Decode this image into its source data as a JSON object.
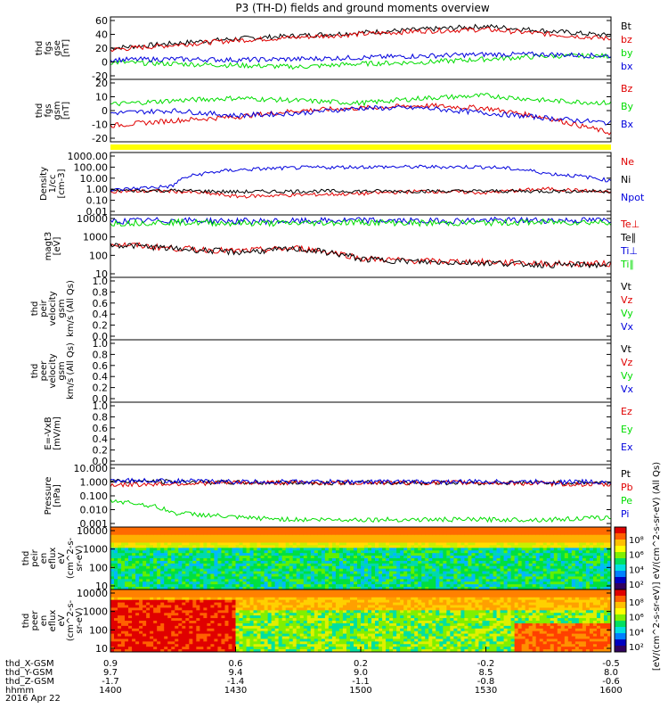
{
  "title": "P3 (TH-D) fields and ground moments overview",
  "date_label": "2016 Apr 22",
  "colors": {
    "black": "#000000",
    "red": "#e00000",
    "green": "#00dd00",
    "blue": "#0000dd",
    "yellow": "#ffff00"
  },
  "panels": [
    {
      "id": "fgs-gse",
      "ylabel": [
        "thd",
        "fgs",
        "gse",
        "[nT]"
      ],
      "ylog": false,
      "ticks": [
        "60",
        "40",
        "20",
        "0",
        "-20"
      ],
      "legend": [
        {
          "text": "Bt",
          "color": "#000000"
        },
        {
          "text": "bz",
          "color": "#e00000"
        },
        {
          "text": "by",
          "color": "#00dd00"
        },
        {
          "text": "bx",
          "color": "#0000dd"
        }
      ]
    },
    {
      "id": "fgs-gsm",
      "ylabel": [
        "thd",
        "fgs",
        "gsm",
        "[nT]"
      ],
      "ylog": false,
      "ticks": [
        "20",
        "10",
        "0",
        "-10",
        "-20"
      ],
      "legend": [
        {
          "text": "Bz",
          "color": "#e00000"
        },
        {
          "text": "By",
          "color": "#00dd00"
        },
        {
          "text": "Bx",
          "color": "#0000dd"
        }
      ]
    },
    {
      "id": "density",
      "ylabel": [
        "Density",
        "1/cc",
        "[cm-3]"
      ],
      "ylog": true,
      "ticks": [
        "1000.00",
        "100.00",
        "10.00",
        "1.00",
        "0.10",
        "0.01"
      ],
      "legend": [
        {
          "text": "Ne",
          "color": "#e00000"
        },
        {
          "text": "Ni",
          "color": "#000000"
        },
        {
          "text": "Npot",
          "color": "#0000dd"
        }
      ]
    },
    {
      "id": "temperature",
      "ylabel": [
        "magt3",
        "[eV]"
      ],
      "ylog": true,
      "ticks": [
        "10000",
        "1000",
        "100",
        "10"
      ],
      "legend": [
        {
          "text": "Te⊥",
          "color": "#e00000"
        },
        {
          "text": "Te∥",
          "color": "#000000"
        },
        {
          "text": "Ti⊥",
          "color": "#0000dd"
        },
        {
          "text": "Ti∥",
          "color": "#00dd00"
        }
      ]
    },
    {
      "id": "peir-velocity",
      "ylabel": [
        "thd",
        "peir",
        "velocity",
        "gsm",
        "km/s (All Qs)"
      ],
      "ylog": false,
      "ticks": [
        "1.0",
        "0.8",
        "0.6",
        "0.4",
        "0.2",
        "0.0"
      ],
      "legend": [
        {
          "text": "Vt",
          "color": "#000000"
        },
        {
          "text": "Vz",
          "color": "#e00000"
        },
        {
          "text": "Vy",
          "color": "#00dd00"
        },
        {
          "text": "Vx",
          "color": "#0000dd"
        }
      ]
    },
    {
      "id": "peer-velocity",
      "ylabel": [
        "thd",
        "peer",
        "velocity",
        "gsm",
        "km/s (All Qs)"
      ],
      "ylog": false,
      "ticks": [
        "1.0",
        "0.8",
        "0.6",
        "0.4",
        "0.2",
        "0.0"
      ],
      "legend": [
        {
          "text": "Vt",
          "color": "#000000"
        },
        {
          "text": "Vz",
          "color": "#e00000"
        },
        {
          "text": "Vy",
          "color": "#00dd00"
        },
        {
          "text": "Vx",
          "color": "#0000dd"
        }
      ]
    },
    {
      "id": "efield",
      "ylabel": [
        "E=-VxB",
        "[mV/m]"
      ],
      "ylog": false,
      "ticks": [
        "1.0",
        "0.8",
        "0.6",
        "0.4",
        "0.2",
        "0.0"
      ],
      "legend": [
        {
          "text": "Ez",
          "color": "#e00000"
        },
        {
          "text": "Ey",
          "color": "#00dd00"
        },
        {
          "text": "Ex",
          "color": "#0000dd"
        }
      ]
    },
    {
      "id": "pressure",
      "ylabel": [
        "Pressure",
        "[nPa]"
      ],
      "ylog": true,
      "ticks": [
        "10.000",
        "1.000",
        "0.100",
        "0.010",
        "0.001"
      ],
      "legend": [
        {
          "text": "Pt",
          "color": "#000000"
        },
        {
          "text": "Pb",
          "color": "#e00000"
        },
        {
          "text": "Pe",
          "color": "#00dd00"
        },
        {
          "text": "Pi",
          "color": "#0000dd"
        }
      ]
    },
    {
      "id": "peir-spec",
      "ylabel": [
        "thd",
        "peir",
        "en",
        "eflux",
        "eV",
        "(cm^2-s-",
        "sr-eV)"
      ],
      "ylog": true,
      "ticks": [
        "10000",
        "1000",
        "100",
        "10"
      ],
      "colorbar_ticks": [
        "10⁸",
        "10⁶",
        "10⁴",
        "10²"
      ],
      "legend": []
    },
    {
      "id": "peer-spec",
      "ylabel": [
        "thd",
        "peer",
        "en",
        "eflux",
        "eV",
        "(cm^2-s-",
        "sr-eV)"
      ],
      "ylog": true,
      "ticks": [
        "10000",
        "1000",
        "100",
        "10"
      ],
      "colorbar_ticks": [
        "10⁸",
        "10⁶",
        "10⁴",
        "10²"
      ],
      "legend": []
    }
  ],
  "colorbar_label": "[eV/(cm^2-s-sr-eV)] eV/(cm^2-s-sr-eV) (All Qs)",
  "xaxis": {
    "rows": [
      {
        "label": "thd_X-GSM",
        "values": [
          "0.9",
          "0.6",
          "0.2",
          "-0.2",
          "-0.5"
        ]
      },
      {
        "label": "thd_Y-GSM",
        "values": [
          "9.7",
          "9.4",
          "9.0",
          "8.5",
          "8.0"
        ]
      },
      {
        "label": "thd_Z-GSM",
        "values": [
          "-1.7",
          "-1.4",
          "-1.1",
          "-0.8",
          "-0.6"
        ]
      },
      {
        "label": "hhmm",
        "values": [
          "1400",
          "1430",
          "1500",
          "1530",
          "1600"
        ]
      }
    ]
  },
  "chart_data": {
    "type": "line",
    "title": "P3 (TH-D) fields and ground moments overview",
    "x_time": [
      "14:00",
      "14:30",
      "15:00",
      "15:30",
      "16:00"
    ],
    "xlim": [
      "14:00",
      "16:00"
    ],
    "panels": [
      {
        "name": "thd fgs gse [nT]",
        "ylim": [
          -20,
          60
        ],
        "x_minutes": [
          0,
          15,
          30,
          45,
          60,
          75,
          90,
          105,
          120
        ],
        "series": [
          {
            "name": "Bt",
            "values": [
              20,
              26,
              32,
              36,
              40,
              44,
              48,
              42,
              36
            ]
          },
          {
            "name": "bz",
            "values": [
              18,
              24,
              30,
              34,
              38,
              42,
              44,
              38,
              32
            ]
          },
          {
            "name": "by",
            "values": [
              2,
              0,
              -2,
              -4,
              0,
              2,
              6,
              10,
              10
            ]
          },
          {
            "name": "bx",
            "values": [
              5,
              6,
              5,
              6,
              8,
              10,
              12,
              12,
              10
            ]
          }
        ]
      },
      {
        "name": "thd fgs gsm [nT]",
        "ylim": [
          -25,
          25
        ],
        "x_minutes": [
          0,
          15,
          30,
          45,
          60,
          75,
          90,
          105,
          120
        ],
        "series": [
          {
            "name": "Bz",
            "values": [
              -12,
              -8,
              -5,
              0,
              2,
              4,
              2,
              -6,
              -18
            ]
          },
          {
            "name": "By",
            "values": [
              5,
              8,
              10,
              8,
              6,
              10,
              12,
              8,
              6
            ]
          },
          {
            "name": "Bx",
            "values": [
              -2,
              0,
              -4,
              -2,
              2,
              2,
              -2,
              -6,
              -10
            ]
          }
        ]
      },
      {
        "name": "Density 1/cc [cm-3]",
        "ylim": [
          0.01,
          1000
        ],
        "yscale": "log",
        "x_minutes": [
          0,
          15,
          30,
          45,
          60,
          75,
          90,
          105,
          120
        ],
        "series": [
          {
            "name": "Ne",
            "values": [
              0.8,
              0.8,
              0.3,
              0.4,
              0.5,
              0.8,
              0.6,
              1.2,
              0.6
            ]
          },
          {
            "name": "Ni",
            "values": [
              0.9,
              0.9,
              0.7,
              0.8,
              0.8,
              0.8,
              0.8,
              0.8,
              0.8
            ]
          },
          {
            "name": "Npot",
            "values": [
              0.9,
              2,
              40,
              60,
              70,
              70,
              70,
              20,
              5
            ]
          }
        ]
      },
      {
        "name": "magt3 [eV]",
        "ylim": [
          10,
          10000
        ],
        "yscale": "log",
        "x_minutes": [
          0,
          15,
          30,
          45,
          60,
          75,
          90,
          105,
          120
        ],
        "series": [
          {
            "name": "Te⊥",
            "values": [
              400,
              250,
              180,
              250,
              80,
              60,
              55,
              45,
              45
            ]
          },
          {
            "name": "Te∥",
            "values": [
              380,
              240,
              160,
              230,
              75,
              55,
              50,
              40,
              40
            ]
          },
          {
            "name": "Ti⊥",
            "values": [
              5000,
              5500,
              5000,
              5000,
              5500,
              5000,
              5500,
              5500,
              5500
            ]
          },
          {
            "name": "Ti∥",
            "values": [
              4000,
              4500,
              4000,
              4000,
              4500,
              4000,
              4200,
              4500,
              4500
            ]
          }
        ]
      },
      {
        "name": "thd peir velocity gsm km/s (All Qs)",
        "ylim": [
          0,
          1
        ],
        "series": []
      },
      {
        "name": "thd peer velocity gsm km/s (All Qs)",
        "ylim": [
          0,
          1
        ],
        "series": []
      },
      {
        "name": "E=-VxB [mV/m]",
        "ylim": [
          0,
          1
        ],
        "series": []
      },
      {
        "name": "Pressure [nPa]",
        "ylim": [
          0.001,
          10
        ],
        "yscale": "log",
        "x_minutes": [
          0,
          15,
          30,
          45,
          60,
          75,
          90,
          105,
          120
        ],
        "series": [
          {
            "name": "Pt",
            "values": [
              0.9,
              0.8,
              0.7,
              0.7,
              0.7,
              0.7,
              0.7,
              0.7,
              0.7
            ]
          },
          {
            "name": "Pb",
            "values": [
              0.5,
              0.6,
              0.7,
              0.7,
              0.7,
              0.7,
              0.7,
              0.6,
              0.5
            ]
          },
          {
            "name": "Pe",
            "values": [
              0.05,
              0.008,
              0.004,
              0.003,
              0.003,
              0.003,
              0.003,
              0.003,
              0.004
            ]
          },
          {
            "name": "Pi",
            "values": [
              1.0,
              0.9,
              0.8,
              0.8,
              0.8,
              0.8,
              0.8,
              0.8,
              0.8
            ]
          }
        ]
      },
      {
        "name": "thd peir en eflux eV (cm^2-s-sr-eV)",
        "type": "heatmap",
        "ylim": [
          5,
          25000
        ],
        "yscale": "log",
        "zscale": "log",
        "zlim": [
          100,
          100000000
        ]
      },
      {
        "name": "thd peer en eflux eV (cm^2-s-sr-eV)",
        "type": "heatmap",
        "ylim": [
          5,
          25000
        ],
        "yscale": "log",
        "zscale": "log",
        "zlim": [
          100,
          100000000
        ]
      }
    ]
  }
}
